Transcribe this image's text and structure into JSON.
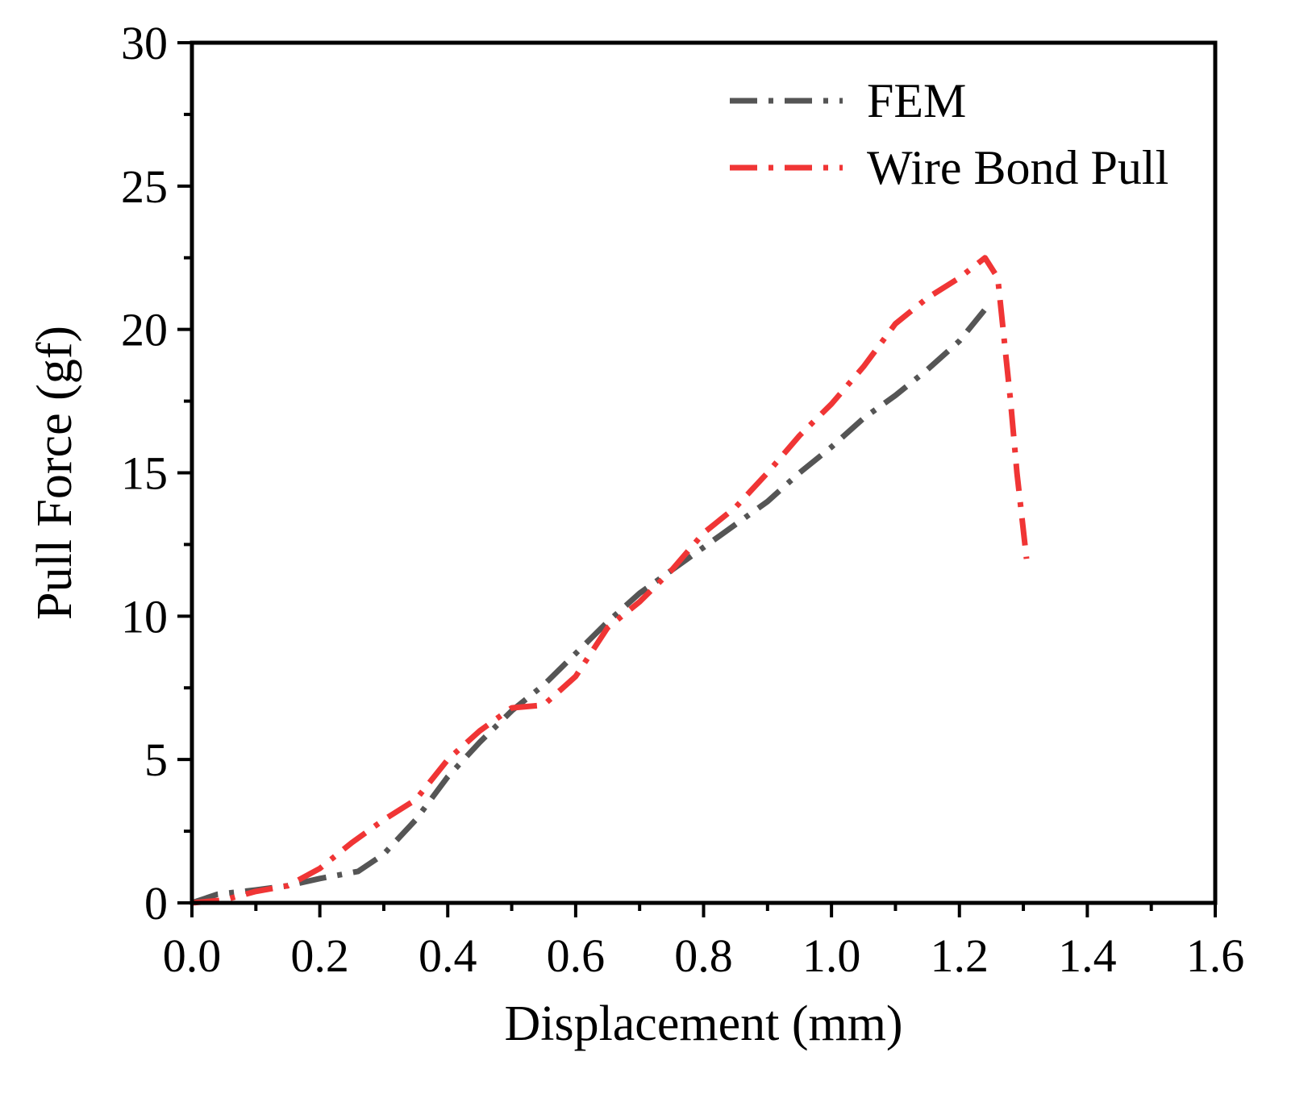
{
  "chart_data": {
    "type": "line",
    "title": "",
    "xlabel": "Displacement (mm)",
    "ylabel": "Pull Force (gf)",
    "xlim": [
      0.0,
      1.6
    ],
    "ylim": [
      0,
      30
    ],
    "xticks": [
      0.0,
      0.2,
      0.4,
      0.6,
      0.8,
      1.0,
      1.2,
      1.4,
      1.6
    ],
    "xtick_labels": [
      "0.0",
      "0.2",
      "0.4",
      "0.6",
      "0.8",
      "1.0",
      "1.2",
      "1.4",
      "1.6"
    ],
    "yticks": [
      0,
      5,
      10,
      15,
      20,
      25,
      30
    ],
    "ytick_labels": [
      "0",
      "5",
      "10",
      "15",
      "20",
      "25",
      "30"
    ],
    "grid": false,
    "legend_position": "top-right",
    "series": [
      {
        "name": "FEM",
        "color": "#555555",
        "style": "dash-dot",
        "points": [
          [
            0.0,
            0.0
          ],
          [
            0.04,
            0.3
          ],
          [
            0.1,
            0.45
          ],
          [
            0.15,
            0.6
          ],
          [
            0.2,
            0.85
          ],
          [
            0.26,
            1.1
          ],
          [
            0.3,
            1.7
          ],
          [
            0.35,
            2.9
          ],
          [
            0.4,
            4.4
          ],
          [
            0.45,
            5.6
          ],
          [
            0.5,
            6.7
          ],
          [
            0.55,
            7.6
          ],
          [
            0.6,
            8.7
          ],
          [
            0.65,
            9.8
          ],
          [
            0.7,
            10.8
          ],
          [
            0.75,
            11.6
          ],
          [
            0.8,
            12.4
          ],
          [
            0.85,
            13.2
          ],
          [
            0.9,
            14.0
          ],
          [
            0.95,
            15.0
          ],
          [
            1.0,
            15.9
          ],
          [
            1.05,
            16.9
          ],
          [
            1.1,
            17.7
          ],
          [
            1.15,
            18.6
          ],
          [
            1.2,
            19.6
          ],
          [
            1.24,
            20.7
          ]
        ]
      },
      {
        "name": "Wire Bond Pull",
        "color": "#f03535",
        "style": "dash-dot",
        "points": [
          [
            0.0,
            0.0
          ],
          [
            0.05,
            0.1
          ],
          [
            0.1,
            0.4
          ],
          [
            0.15,
            0.6
          ],
          [
            0.2,
            1.2
          ],
          [
            0.25,
            2.1
          ],
          [
            0.3,
            2.9
          ],
          [
            0.35,
            3.6
          ],
          [
            0.4,
            5.0
          ],
          [
            0.45,
            6.0
          ],
          [
            0.5,
            6.8
          ],
          [
            0.55,
            6.9
          ],
          [
            0.6,
            7.9
          ],
          [
            0.65,
            9.6
          ],
          [
            0.7,
            10.5
          ],
          [
            0.75,
            11.6
          ],
          [
            0.8,
            12.9
          ],
          [
            0.85,
            13.8
          ],
          [
            0.9,
            15.0
          ],
          [
            0.95,
            16.3
          ],
          [
            1.0,
            17.4
          ],
          [
            1.05,
            18.7
          ],
          [
            1.1,
            20.2
          ],
          [
            1.15,
            21.1
          ],
          [
            1.2,
            21.8
          ],
          [
            1.24,
            22.5
          ],
          [
            1.26,
            21.8
          ],
          [
            1.28,
            17.5
          ],
          [
            1.29,
            15.0
          ],
          [
            1.305,
            12.0
          ]
        ]
      }
    ]
  }
}
